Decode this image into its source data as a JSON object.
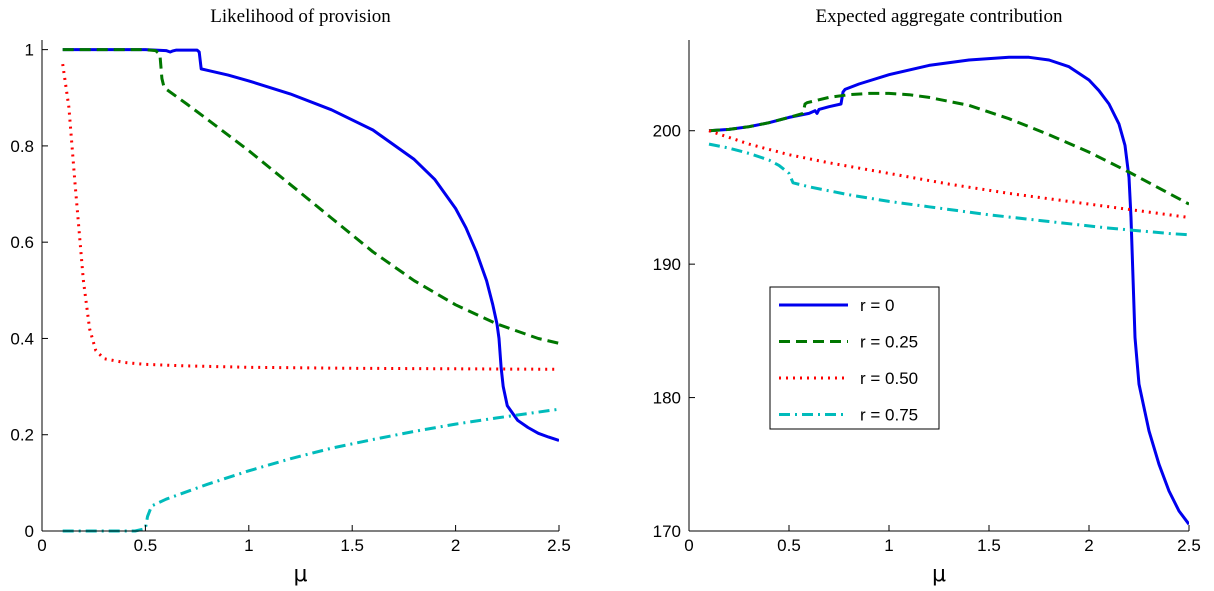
{
  "chart_data": [
    {
      "type": "line",
      "title": "Likelihood of provision",
      "xlabel": "μ",
      "ylabel": "",
      "xlim": [
        0,
        2.5
      ],
      "ylim": [
        0,
        1.02
      ],
      "xticks": [
        0,
        0.5,
        1,
        1.5,
        2,
        2.5
      ],
      "xtick_labels": [
        "0",
        "0.5",
        "1",
        "1.5",
        "2",
        "2.5"
      ],
      "yticks": [
        0,
        0.2,
        0.4,
        0.6,
        0.8,
        1
      ],
      "ytick_labels": [
        "0",
        "0.2",
        "0.4",
        "0.6",
        "0.8",
        "1"
      ],
      "grid": false,
      "series": [
        {
          "name": "r = 0",
          "color": "#0000ee",
          "dash": "solid",
          "x": [
            0.1,
            0.3,
            0.5,
            0.6,
            0.62,
            0.63,
            0.65,
            0.7,
            0.75,
            0.76,
            0.77,
            0.8,
            0.9,
            1.0,
            1.2,
            1.4,
            1.6,
            1.8,
            1.9,
            2.0,
            2.05,
            2.1,
            2.15,
            2.18,
            2.2,
            2.21,
            2.22,
            2.23,
            2.25,
            2.3,
            2.35,
            2.4,
            2.45,
            2.5
          ],
          "y": [
            1.0,
            1.0,
            1.0,
            0.998,
            0.995,
            0.997,
            0.999,
            0.999,
            0.999,
            0.995,
            0.96,
            0.957,
            0.947,
            0.935,
            0.908,
            0.875,
            0.833,
            0.772,
            0.73,
            0.67,
            0.63,
            0.58,
            0.52,
            0.47,
            0.43,
            0.4,
            0.34,
            0.3,
            0.26,
            0.23,
            0.215,
            0.203,
            0.195,
            0.188
          ]
        },
        {
          "name": "r = 0.25",
          "color": "#007700",
          "dash": "dashed",
          "x": [
            0.1,
            0.3,
            0.5,
            0.55,
            0.57,
            0.58,
            0.59,
            0.6,
            0.7,
            0.8,
            1.0,
            1.2,
            1.4,
            1.6,
            1.8,
            2.0,
            2.2,
            2.4,
            2.5
          ],
          "y": [
            1.0,
            1.0,
            1.0,
            0.998,
            0.99,
            0.94,
            0.922,
            0.918,
            0.887,
            0.855,
            0.79,
            0.72,
            0.65,
            0.58,
            0.52,
            0.47,
            0.43,
            0.4,
            0.39
          ]
        },
        {
          "name": "r = 0.50",
          "color": "#ff0000",
          "dash": "dotted",
          "x": [
            0.1,
            0.13,
            0.16,
            0.2,
            0.23,
            0.26,
            0.3,
            0.4,
            0.5,
            0.7,
            1.0,
            1.5,
            2.0,
            2.5
          ],
          "y": [
            0.97,
            0.88,
            0.72,
            0.52,
            0.42,
            0.375,
            0.358,
            0.35,
            0.346,
            0.343,
            0.34,
            0.338,
            0.337,
            0.336
          ]
        },
        {
          "name": "r = 0.75",
          "color": "#00bbbb",
          "dash": "dashdot",
          "x": [
            0.1,
            0.3,
            0.45,
            0.5,
            0.51,
            0.53,
            0.6,
            0.8,
            1.0,
            1.2,
            1.4,
            1.6,
            1.8,
            2.0,
            2.2,
            2.4,
            2.5
          ],
          "y": [
            0.0,
            0.0,
            0.0,
            0.005,
            0.03,
            0.052,
            0.066,
            0.097,
            0.125,
            0.15,
            0.172,
            0.19,
            0.207,
            0.222,
            0.235,
            0.247,
            0.253
          ]
        }
      ]
    },
    {
      "type": "line",
      "title": "Expected aggregate contribution",
      "xlabel": "μ",
      "ylabel": "",
      "xlim": [
        0,
        2.5
      ],
      "ylim": [
        170,
        206.8
      ],
      "xticks": [
        0,
        0.5,
        1,
        1.5,
        2,
        2.5
      ],
      "xtick_labels": [
        "0",
        "0.5",
        "1",
        "1.5",
        "2",
        "2.5"
      ],
      "yticks": [
        170,
        180,
        190,
        200
      ],
      "ytick_labels": [
        "170",
        "180",
        "190",
        "200"
      ],
      "grid": false,
      "legend": {
        "placement": "center-left",
        "entries": [
          "r = 0",
          "r = 0.25",
          "r = 0.50",
          "r = 0.75"
        ]
      },
      "series": [
        {
          "name": "r = 0",
          "color": "#0000ee",
          "dash": "solid",
          "x": [
            0.1,
            0.2,
            0.3,
            0.4,
            0.5,
            0.6,
            0.63,
            0.64,
            0.65,
            0.7,
            0.76,
            0.77,
            0.78,
            0.85,
            1.0,
            1.2,
            1.4,
            1.6,
            1.7,
            1.8,
            1.9,
            2.0,
            2.05,
            2.1,
            2.15,
            2.18,
            2.2,
            2.21,
            2.22,
            2.23,
            2.25,
            2.3,
            2.35,
            2.4,
            2.45,
            2.5
          ],
          "y": [
            200.0,
            200.1,
            200.3,
            200.6,
            201.0,
            201.3,
            201.5,
            201.3,
            201.6,
            201.8,
            202.0,
            202.9,
            203.1,
            203.5,
            204.2,
            204.9,
            205.3,
            205.5,
            205.5,
            205.3,
            204.8,
            203.8,
            203.0,
            202.0,
            200.5,
            198.9,
            196.5,
            193.5,
            189.0,
            184.5,
            181.0,
            177.5,
            175.0,
            173.0,
            171.5,
            170.5
          ]
        },
        {
          "name": "r = 0.25",
          "color": "#007700",
          "dash": "dashed",
          "x": [
            0.1,
            0.2,
            0.3,
            0.4,
            0.5,
            0.57,
            0.58,
            0.59,
            0.7,
            0.8,
            0.9,
            1.0,
            1.1,
            1.2,
            1.4,
            1.6,
            1.8,
            2.0,
            2.2,
            2.4,
            2.5
          ],
          "y": [
            200.0,
            200.1,
            200.3,
            200.6,
            201.0,
            201.3,
            202.0,
            202.1,
            202.5,
            202.7,
            202.8,
            202.8,
            202.7,
            202.5,
            201.9,
            200.9,
            199.7,
            198.4,
            196.9,
            195.3,
            194.5
          ]
        },
        {
          "name": "r = 0.50",
          "color": "#ff0000",
          "dash": "dotted",
          "x": [
            0.1,
            0.2,
            0.3,
            0.5,
            0.7,
            1.0,
            1.3,
            1.6,
            2.0,
            2.3,
            2.5
          ],
          "y": [
            200.0,
            199.5,
            199.0,
            198.2,
            197.6,
            196.8,
            196.0,
            195.3,
            194.5,
            193.9,
            193.5
          ]
        },
        {
          "name": "r = 0.75",
          "color": "#00bbbb",
          "dash": "dashdot",
          "x": [
            0.1,
            0.2,
            0.3,
            0.4,
            0.45,
            0.5,
            0.52,
            0.6,
            0.8,
            1.0,
            1.2,
            1.5,
            1.8,
            2.1,
            2.4,
            2.5
          ],
          "y": [
            199.0,
            198.7,
            198.3,
            197.8,
            197.4,
            196.8,
            196.1,
            195.8,
            195.2,
            194.7,
            194.3,
            193.7,
            193.2,
            192.7,
            192.3,
            192.2
          ]
        }
      ]
    }
  ]
}
